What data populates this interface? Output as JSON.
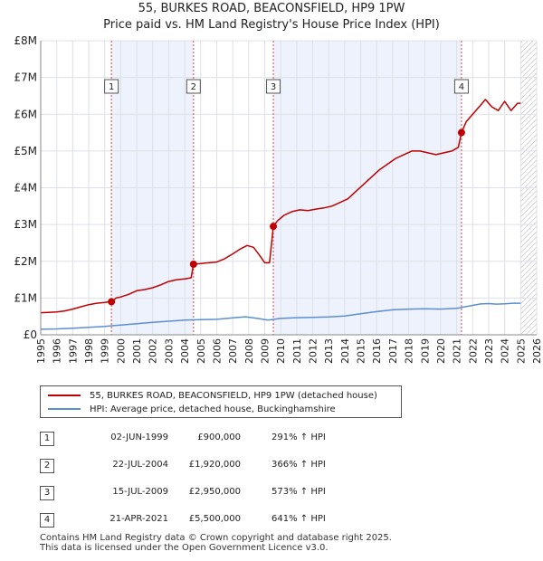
{
  "title_line1": "55, BURKES ROAD, BEACONSFIELD, HP9 1PW",
  "title_line2": "Price paid vs. HM Land Registry's House Price Index (HPI)",
  "chart_data": {
    "type": "line",
    "x_range": [
      1995,
      2026
    ],
    "ylim": [
      0,
      8000000
    ],
    "y_ticks": [
      {
        "value": 0,
        "label": "£0"
      },
      {
        "value": 1000000,
        "label": "£1M"
      },
      {
        "value": 2000000,
        "label": "£2M"
      },
      {
        "value": 3000000,
        "label": "£3M"
      },
      {
        "value": 4000000,
        "label": "£4M"
      },
      {
        "value": 5000000,
        "label": "£5M"
      },
      {
        "value": 6000000,
        "label": "£6M"
      },
      {
        "value": 7000000,
        "label": "£7M"
      },
      {
        "value": 8000000,
        "label": "£8M"
      }
    ],
    "x_ticks": [
      "1995",
      "1996",
      "1997",
      "1998",
      "1999",
      "2000",
      "2001",
      "2002",
      "2003",
      "2004",
      "2005",
      "2006",
      "2007",
      "2008",
      "2009",
      "2010",
      "2011",
      "2012",
      "2013",
      "2014",
      "2015",
      "2016",
      "2017",
      "2018",
      "2019",
      "2020",
      "2021",
      "2022",
      "2023",
      "2024",
      "2025",
      "2026"
    ],
    "grid": true,
    "shaded_periods": [
      [
        1999.42,
        2004.55
      ],
      [
        2009.54,
        2021.3
      ]
    ],
    "hatched_from": 2025.0,
    "series": [
      {
        "name": "55, BURKES ROAD, BEACONSFIELD, HP9 1PW (detached house)",
        "color": "#c00000",
        "x": [
          1995.0,
          1995.5,
          1996.0,
          1996.5,
          1997.0,
          1997.5,
          1998.0,
          1998.5,
          1999.0,
          1999.42,
          1999.7,
          2000.0,
          2000.5,
          2001.0,
          2001.5,
          2002.0,
          2002.5,
          2003.0,
          2003.5,
          2004.0,
          2004.4,
          2004.55,
          2004.8,
          2005.0,
          2005.5,
          2006.0,
          2006.5,
          2007.0,
          2007.5,
          2007.9,
          2008.3,
          2008.7,
          2009.0,
          2009.3,
          2009.54,
          2009.8,
          2010.2,
          2010.7,
          2011.2,
          2011.7,
          2012.2,
          2012.7,
          2013.2,
          2013.7,
          2014.2,
          2014.7,
          2015.2,
          2015.7,
          2016.2,
          2016.7,
          2017.2,
          2017.7,
          2018.2,
          2018.7,
          2019.2,
          2019.7,
          2020.2,
          2020.7,
          2021.1,
          2021.3,
          2021.6,
          2022.0,
          2022.4,
          2022.8,
          2023.2,
          2023.6,
          2024.0,
          2024.4,
          2024.8,
          2025.0
        ],
        "values": [
          600000,
          610000,
          620000,
          650000,
          700000,
          760000,
          820000,
          860000,
          880000,
          900000,
          1000000,
          1030000,
          1100000,
          1200000,
          1230000,
          1280000,
          1360000,
          1450000,
          1500000,
          1520000,
          1550000,
          1920000,
          1930000,
          1940000,
          1960000,
          1980000,
          2070000,
          2200000,
          2340000,
          2430000,
          2380000,
          2150000,
          1960000,
          1960000,
          2950000,
          3100000,
          3250000,
          3350000,
          3400000,
          3380000,
          3420000,
          3450000,
          3500000,
          3600000,
          3700000,
          3900000,
          4100000,
          4300000,
          4500000,
          4650000,
          4800000,
          4900000,
          5000000,
          5000000,
          4950000,
          4900000,
          4950000,
          5000000,
          5100000,
          5500000,
          5800000,
          6000000,
          6200000,
          6400000,
          6200000,
          6100000,
          6350000,
          6100000,
          6300000,
          6300000
        ]
      },
      {
        "name": "HPI: Average price, detached house, Buckinghamshire",
        "color": "#5b8fd1",
        "x": [
          1995.0,
          1996.0,
          1997.0,
          1998.0,
          1999.0,
          2000.0,
          2001.0,
          2002.0,
          2003.0,
          2004.0,
          2005.0,
          2006.0,
          2007.0,
          2007.8,
          2008.5,
          2009.2,
          2010.0,
          2011.0,
          2012.0,
          2013.0,
          2014.0,
          2015.0,
          2016.0,
          2017.0,
          2018.0,
          2019.0,
          2020.0,
          2021.0,
          2021.5,
          2022.0,
          2022.5,
          2023.0,
          2023.5,
          2024.0,
          2024.5,
          2025.0
        ],
        "values": [
          150000,
          160000,
          180000,
          205000,
          230000,
          265000,
          300000,
          340000,
          370000,
          400000,
          410000,
          420000,
          460000,
          490000,
          450000,
          400000,
          445000,
          465000,
          475000,
          485000,
          510000,
          570000,
          630000,
          680000,
          700000,
          710000,
          700000,
          720000,
          760000,
          800000,
          840000,
          850000,
          835000,
          845000,
          860000,
          860000
        ]
      }
    ],
    "sale_markers": [
      {
        "label": "1",
        "x": 1999.42,
        "value": 900000
      },
      {
        "label": "2",
        "x": 2004.55,
        "value": 1920000
      },
      {
        "label": "3",
        "x": 2009.54,
        "value": 2950000
      },
      {
        "label": "4",
        "x": 2021.3,
        "value": 5500000
      }
    ]
  },
  "legend": {
    "property_label": "55, BURKES ROAD, BEACONSFIELD, HP9 1PW (detached house)",
    "hpi_label": "HPI: Average price, detached house, Buckinghamshire"
  },
  "sales": [
    {
      "num": "1",
      "date": "02-JUN-1999",
      "price": "£900,000",
      "hpi": "291% ↑ HPI"
    },
    {
      "num": "2",
      "date": "22-JUL-2004",
      "price": "£1,920,000",
      "hpi": "366% ↑ HPI"
    },
    {
      "num": "3",
      "date": "15-JUL-2009",
      "price": "£2,950,000",
      "hpi": "573% ↑ HPI"
    },
    {
      "num": "4",
      "date": "21-APR-2021",
      "price": "£5,500,000",
      "hpi": "641% ↑ HPI"
    }
  ],
  "footer_line1": "Contains HM Land Registry data © Crown copyright and database right 2025.",
  "footer_line2": "This data is licensed under the Open Government Licence v3.0."
}
